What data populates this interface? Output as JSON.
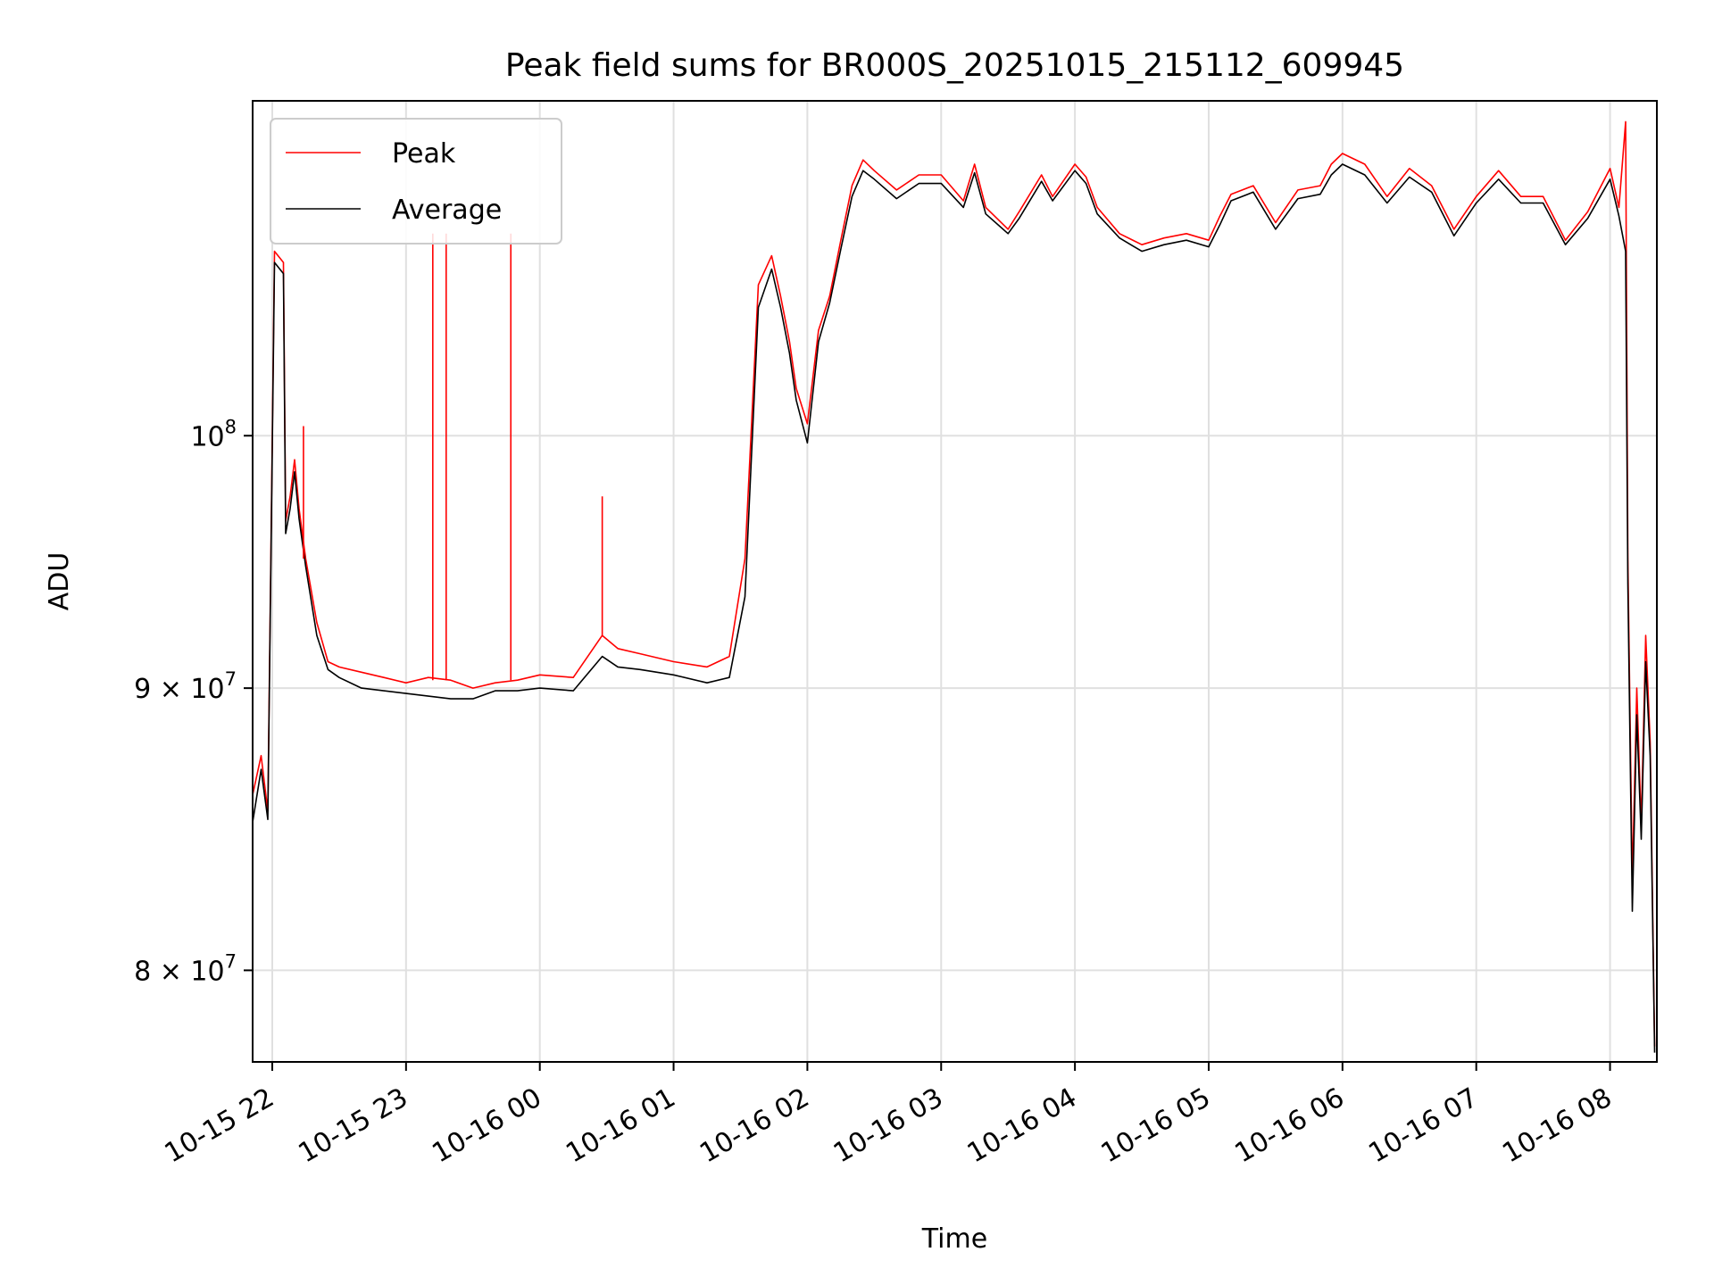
{
  "chart_data": {
    "type": "line",
    "title": "Peak field sums for BR000S_20251015_215112_609945",
    "xlabel": "Time",
    "ylabel": "ADU",
    "x_type": "datetime",
    "xlim": [
      "2025-10-15T21:51:12",
      "2025-10-16T08:21:00"
    ],
    "ylim": [
      77000000,
      115000000
    ],
    "yscale": "log",
    "grid": true,
    "legend": "upper left",
    "x_ticks": [
      {
        "value": "2025-10-15T22:00",
        "label": "10-15 22"
      },
      {
        "value": "2025-10-15T23:00",
        "label": "10-15 23"
      },
      {
        "value": "2025-10-16T00:00",
        "label": "10-16 00"
      },
      {
        "value": "2025-10-16T01:00",
        "label": "10-16 01"
      },
      {
        "value": "2025-10-16T02:00",
        "label": "10-16 02"
      },
      {
        "value": "2025-10-16T03:00",
        "label": "10-16 03"
      },
      {
        "value": "2025-10-16T04:00",
        "label": "10-16 04"
      },
      {
        "value": "2025-10-16T05:00",
        "label": "10-16 05"
      },
      {
        "value": "2025-10-16T06:00",
        "label": "10-16 06"
      },
      {
        "value": "2025-10-16T07:00",
        "label": "10-16 07"
      },
      {
        "value": "2025-10-16T08:00",
        "label": "10-16 08"
      }
    ],
    "y_ticks": [
      {
        "value": 80000000,
        "base": "8 × 10",
        "exp": "7"
      },
      {
        "value": 90000000,
        "base": "9 × 10",
        "exp": "7"
      },
      {
        "value": 100000000,
        "base": "10",
        "exp": "8"
      }
    ],
    "series": [
      {
        "name": "Peak",
        "color": "#ff0000",
        "x": [
          "2025-10-15T21:51",
          "2025-10-15T21:55",
          "2025-10-15T21:58",
          "2025-10-15T22:01",
          "2025-10-15T22:05",
          "2025-10-15T22:06",
          "2025-10-15T22:08",
          "2025-10-15T22:10",
          "2025-10-15T22:12",
          "2025-10-15T22:15",
          "2025-10-15T22:20",
          "2025-10-15T22:25",
          "2025-10-15T22:30",
          "2025-10-15T22:40",
          "2025-10-15T22:50",
          "2025-10-15T23:00",
          "2025-10-15T23:10",
          "2025-10-15T23:20",
          "2025-10-15T23:30",
          "2025-10-15T23:40",
          "2025-10-15T23:50",
          "2025-10-16T00:00",
          "2025-10-16T00:15",
          "2025-10-16T00:28",
          "2025-10-16T00:35",
          "2025-10-16T00:45",
          "2025-10-16T01:00",
          "2025-10-16T01:15",
          "2025-10-16T01:25",
          "2025-10-16T01:32",
          "2025-10-16T01:38",
          "2025-10-16T01:44",
          "2025-10-16T01:48",
          "2025-10-16T01:52",
          "2025-10-16T01:55",
          "2025-10-16T02:00",
          "2025-10-16T02:05",
          "2025-10-16T02:10",
          "2025-10-16T02:15",
          "2025-10-16T02:20",
          "2025-10-16T02:25",
          "2025-10-16T02:30",
          "2025-10-16T02:40",
          "2025-10-16T02:50",
          "2025-10-16T03:00",
          "2025-10-16T03:10",
          "2025-10-16T03:15",
          "2025-10-16T03:20",
          "2025-10-16T03:30",
          "2025-10-16T03:35",
          "2025-10-16T03:45",
          "2025-10-16T03:50",
          "2025-10-16T04:00",
          "2025-10-16T04:05",
          "2025-10-16T04:10",
          "2025-10-16T04:20",
          "2025-10-16T04:30",
          "2025-10-16T04:40",
          "2025-10-16T04:50",
          "2025-10-16T05:00",
          "2025-10-16T05:05",
          "2025-10-16T05:10",
          "2025-10-16T05:20",
          "2025-10-16T05:30",
          "2025-10-16T05:40",
          "2025-10-16T05:50",
          "2025-10-16T05:55",
          "2025-10-16T06:00",
          "2025-10-16T06:10",
          "2025-10-16T06:20",
          "2025-10-16T06:30",
          "2025-10-16T06:40",
          "2025-10-16T06:50",
          "2025-10-16T07:00",
          "2025-10-16T07:10",
          "2025-10-16T07:20",
          "2025-10-16T07:30",
          "2025-10-16T07:40",
          "2025-10-16T07:50",
          "2025-10-16T08:00",
          "2025-10-16T08:04",
          "2025-10-16T08:07",
          "2025-10-16T08:08",
          "2025-10-16T08:10",
          "2025-10-16T08:12",
          "2025-10-16T08:14",
          "2025-10-16T08:16",
          "2025-10-16T08:18",
          "2025-10-16T08:20"
        ],
        "y": [
          86000000,
          87500000,
          85500000,
          108000000,
          107500000,
          96500000,
          97500000,
          99000000,
          97000000,
          95000000,
          92500000,
          91000000,
          90800000,
          90600000,
          90400000,
          90200000,
          90400000,
          90300000,
          90000000,
          90200000,
          90300000,
          90500000,
          90400000,
          92000000,
          91500000,
          91300000,
          91000000,
          90800000,
          91200000,
          95000000,
          106500000,
          107800000,
          106000000,
          104000000,
          102000000,
          100500000,
          104500000,
          106000000,
          108500000,
          111000000,
          112200000,
          111700000,
          110800000,
          111500000,
          111500000,
          110300000,
          112000000,
          110000000,
          109000000,
          109800000,
          111500000,
          110500000,
          112000000,
          111400000,
          110000000,
          108800000,
          108300000,
          108600000,
          108800000,
          108500000,
          109600000,
          110600000,
          111000000,
          109300000,
          110800000,
          111000000,
          112000000,
          112500000,
          112000000,
          110500000,
          111800000,
          111000000,
          109000000,
          110500000,
          111700000,
          110500000,
          110500000,
          108500000,
          109800000,
          111800000,
          110000000,
          114000000,
          95000000,
          83000000,
          90000000,
          85000000,
          92000000,
          88000000,
          77500000
        ]
      },
      {
        "name": "Average",
        "color": "#000000",
        "x": [
          "2025-10-15T21:51",
          "2025-10-15T21:55",
          "2025-10-15T21:58",
          "2025-10-15T22:01",
          "2025-10-15T22:05",
          "2025-10-15T22:06",
          "2025-10-15T22:08",
          "2025-10-15T22:10",
          "2025-10-15T22:12",
          "2025-10-15T22:15",
          "2025-10-15T22:20",
          "2025-10-15T22:25",
          "2025-10-15T22:30",
          "2025-10-15T22:40",
          "2025-10-15T22:50",
          "2025-10-15T23:00",
          "2025-10-15T23:10",
          "2025-10-15T23:20",
          "2025-10-15T23:30",
          "2025-10-15T23:40",
          "2025-10-15T23:50",
          "2025-10-16T00:00",
          "2025-10-16T00:15",
          "2025-10-16T00:28",
          "2025-10-16T00:35",
          "2025-10-16T00:45",
          "2025-10-16T01:00",
          "2025-10-16T01:15",
          "2025-10-16T01:25",
          "2025-10-16T01:32",
          "2025-10-16T01:38",
          "2025-10-16T01:44",
          "2025-10-16T01:48",
          "2025-10-16T01:52",
          "2025-10-16T01:55",
          "2025-10-16T02:00",
          "2025-10-16T02:05",
          "2025-10-16T02:10",
          "2025-10-16T02:15",
          "2025-10-16T02:20",
          "2025-10-16T02:25",
          "2025-10-16T02:30",
          "2025-10-16T02:40",
          "2025-10-16T02:50",
          "2025-10-16T03:00",
          "2025-10-16T03:10",
          "2025-10-16T03:15",
          "2025-10-16T03:20",
          "2025-10-16T03:30",
          "2025-10-16T03:35",
          "2025-10-16T03:45",
          "2025-10-16T03:50",
          "2025-10-16T04:00",
          "2025-10-16T04:05",
          "2025-10-16T04:10",
          "2025-10-16T04:20",
          "2025-10-16T04:30",
          "2025-10-16T04:40",
          "2025-10-16T04:50",
          "2025-10-16T05:00",
          "2025-10-16T05:05",
          "2025-10-16T05:10",
          "2025-10-16T05:20",
          "2025-10-16T05:30",
          "2025-10-16T05:40",
          "2025-10-16T05:50",
          "2025-10-16T05:55",
          "2025-10-16T06:00",
          "2025-10-16T06:10",
          "2025-10-16T06:20",
          "2025-10-16T06:30",
          "2025-10-16T06:40",
          "2025-10-16T06:50",
          "2025-10-16T07:00",
          "2025-10-16T07:10",
          "2025-10-16T07:20",
          "2025-10-16T07:30",
          "2025-10-16T07:40",
          "2025-10-16T07:50",
          "2025-10-16T08:00",
          "2025-10-16T08:04",
          "2025-10-16T08:07",
          "2025-10-16T08:08",
          "2025-10-16T08:10",
          "2025-10-16T08:12",
          "2025-10-16T08:14",
          "2025-10-16T08:16",
          "2025-10-16T08:18",
          "2025-10-16T08:20"
        ],
        "y": [
          85000000,
          87000000,
          85200000,
          107500000,
          107000000,
          96000000,
          97000000,
          98500000,
          96600000,
          94700000,
          92000000,
          90700000,
          90400000,
          90000000,
          89900000,
          89800000,
          89700000,
          89600000,
          89600000,
          89900000,
          89900000,
          90000000,
          89900000,
          91200000,
          90800000,
          90700000,
          90500000,
          90200000,
          90400000,
          93500000,
          105500000,
          107200000,
          105500000,
          103500000,
          101500000,
          99700000,
          104000000,
          105700000,
          108100000,
          110500000,
          111700000,
          111300000,
          110400000,
          111100000,
          111100000,
          110000000,
          111600000,
          109700000,
          108800000,
          109500000,
          111200000,
          110300000,
          111700000,
          111100000,
          109700000,
          108600000,
          108000000,
          108300000,
          108500000,
          108200000,
          109200000,
          110300000,
          110700000,
          109000000,
          110400000,
          110600000,
          111500000,
          112000000,
          111500000,
          110200000,
          111400000,
          110700000,
          108700000,
          110200000,
          111300000,
          110200000,
          110200000,
          108300000,
          109500000,
          111300000,
          109600000,
          108000000,
          94000000,
          82000000,
          89000000,
          84500000,
          91000000,
          87500000,
          77300000
        ]
      }
    ],
    "spikes": [
      {
        "series": "Peak",
        "x": "2025-10-15T23:12",
        "y": 108800000
      },
      {
        "series": "Peak",
        "x": "2025-10-15T23:18",
        "y": 108800000
      },
      {
        "series": "Peak",
        "x": "2025-10-15T23:47",
        "y": 108800000
      },
      {
        "series": "Peak",
        "x": "2025-10-16T00:28",
        "y": 97500000
      },
      {
        "series": "Peak",
        "x": "2025-10-15T22:14",
        "y": 100400000
      }
    ]
  }
}
